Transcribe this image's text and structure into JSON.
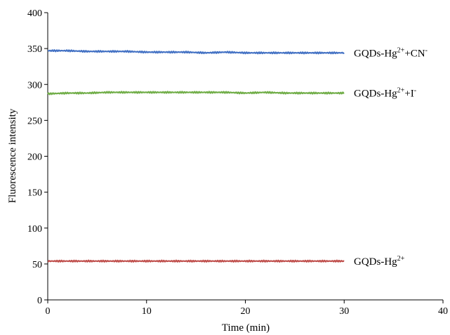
{
  "chart_data": {
    "type": "line",
    "xlabel": "Time (min)",
    "ylabel": "Fluorescence intensity",
    "xlim": [
      0,
      40
    ],
    "ylim": [
      0,
      400
    ],
    "xticks": [
      "0",
      "10",
      "20",
      "30",
      "40"
    ],
    "yticks": [
      "0",
      "50",
      "100",
      "150",
      "200",
      "250",
      "300",
      "350",
      "400"
    ],
    "grid": false,
    "legend": "inline labels at line ends",
    "series": [
      {
        "name": "GQDs-Hg2++CN-",
        "label_parts": [
          [
            "GQDs-Hg",
            ""
          ],
          [
            "2+",
            "sup"
          ],
          [
            "+CN",
            ""
          ],
          [
            "-",
            "sup"
          ]
        ],
        "color": "#4472C4",
        "x": [
          0,
          2,
          4,
          6,
          8,
          10,
          12,
          14,
          16,
          18,
          20,
          22,
          24,
          26,
          28,
          30
        ],
        "y": [
          347,
          347,
          346,
          346,
          346,
          345,
          345,
          345,
          344,
          345,
          344,
          344,
          344,
          344,
          344,
          344
        ]
      },
      {
        "name": "GQDs-Hg2++I-",
        "label_parts": [
          [
            "GQDs-Hg",
            ""
          ],
          [
            "2+",
            "sup"
          ],
          [
            "+I",
            ""
          ],
          [
            "-",
            "sup"
          ]
        ],
        "color": "#70AD47",
        "x": [
          0,
          2,
          4,
          6,
          8,
          10,
          12,
          14,
          16,
          18,
          20,
          22,
          24,
          26,
          28,
          30
        ],
        "y": [
          287,
          288,
          288,
          289,
          289,
          289,
          289,
          289,
          289,
          289,
          288,
          289,
          288,
          288,
          288,
          288
        ]
      },
      {
        "name": "GQDs-Hg2+",
        "label_parts": [
          [
            "GQDs-Hg",
            ""
          ],
          [
            "2+",
            "sup"
          ]
        ],
        "color": "#C0504D",
        "x": [
          0,
          2,
          4,
          6,
          8,
          10,
          12,
          14,
          16,
          18,
          20,
          22,
          24,
          26,
          28,
          30
        ],
        "y": [
          54,
          54,
          54,
          54,
          54,
          54,
          54,
          54,
          54,
          54,
          54,
          54,
          54,
          54,
          54,
          54
        ]
      }
    ]
  }
}
